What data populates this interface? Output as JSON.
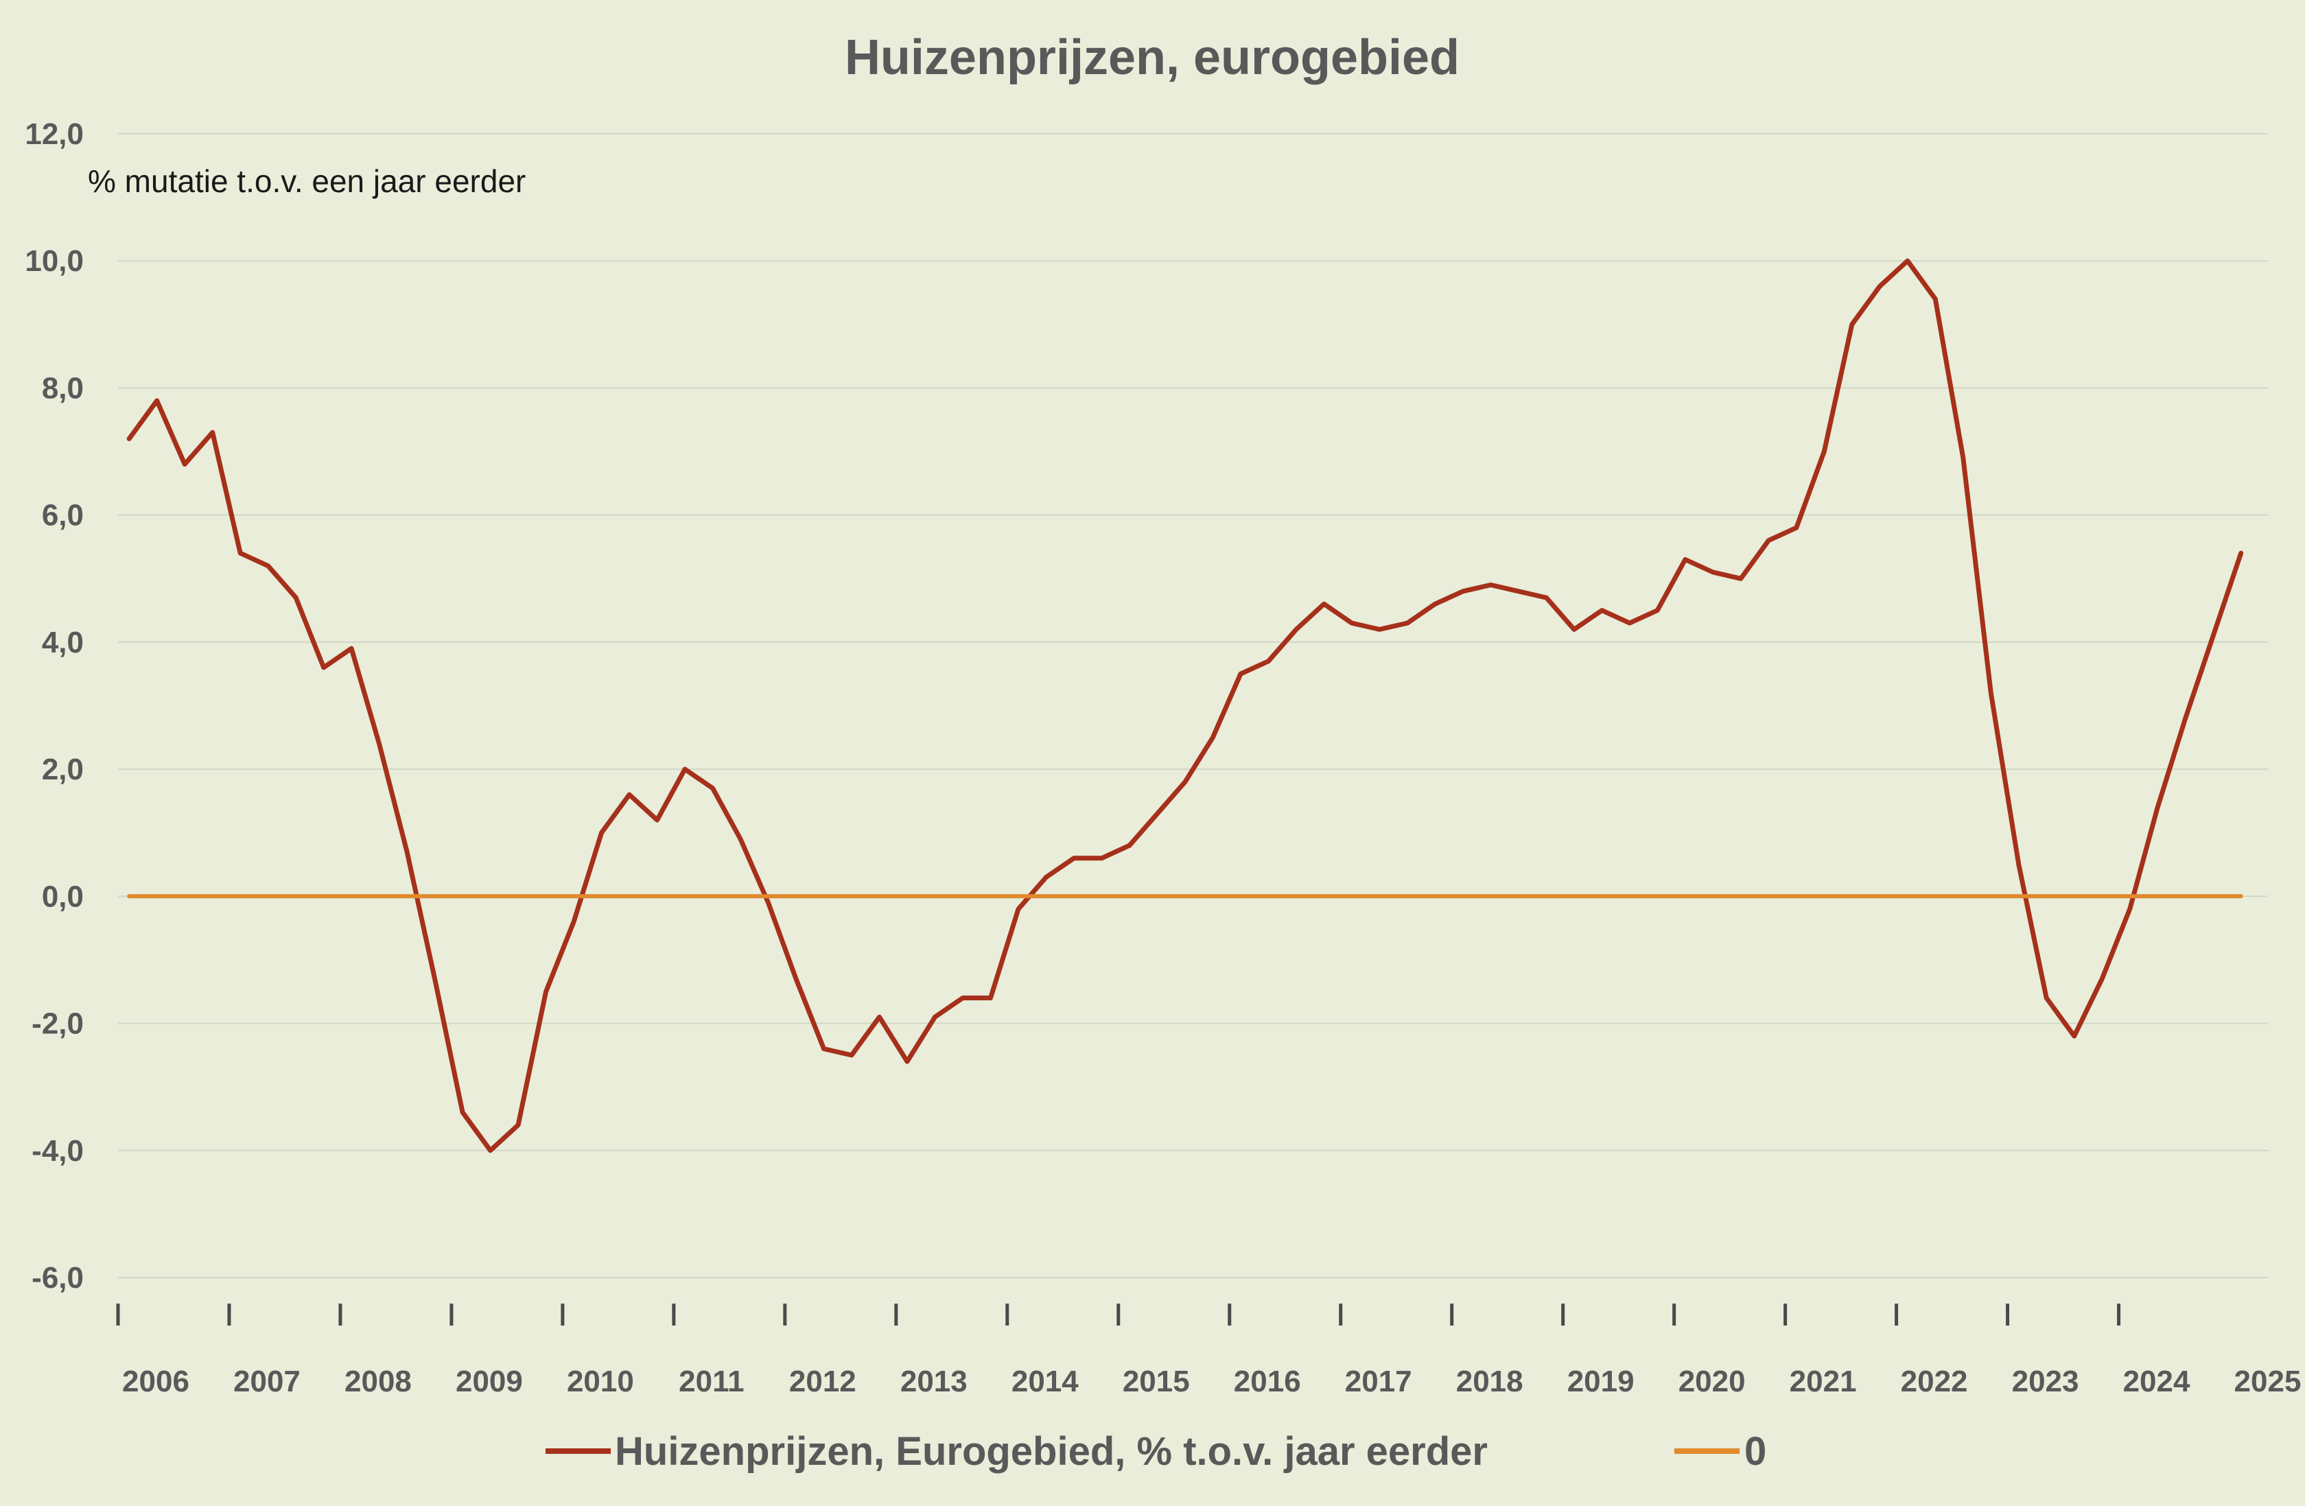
{
  "chart_data": {
    "type": "line",
    "title": "Huizenprijzen, eurogebied",
    "ylabel": "% mutatie t.o.v. een jaar eerder",
    "xlabel": "",
    "ylim": [
      -6,
      12
    ],
    "y_ticks": [
      "12,0",
      "10,0",
      "8,0",
      "6,0",
      "4,0",
      "2,0",
      "0,0",
      "-2,0",
      "-4,0",
      "-6,0"
    ],
    "x_ticks": [
      "2006",
      "2007",
      "2008",
      "2009",
      "2010",
      "2011",
      "2012",
      "2013",
      "2014",
      "2015",
      "2016",
      "2017",
      "2018",
      "2019",
      "2020",
      "2021",
      "2022",
      "2023",
      "2024",
      "2025"
    ],
    "x_range": [
      2006,
      2025.25
    ],
    "grid": true,
    "legend_position": "bottom",
    "series": [
      {
        "name": "Huizenprijzen, Eurogebied, % t.o.v. jaar eerder",
        "color": "#a6301a",
        "x": [
          2006.1,
          2006.35,
          2006.6,
          2006.85,
          2007.1,
          2007.35,
          2007.6,
          2007.85,
          2008.1,
          2008.35,
          2008.6,
          2008.85,
          2009.1,
          2009.35,
          2009.6,
          2009.85,
          2010.1,
          2010.35,
          2010.6,
          2010.85,
          2011.1,
          2011.35,
          2011.6,
          2011.85,
          2012.1,
          2012.35,
          2012.6,
          2012.85,
          2013.1,
          2013.35,
          2013.6,
          2013.85,
          2014.1,
          2014.35,
          2014.6,
          2014.85,
          2015.1,
          2015.35,
          2015.6,
          2015.85,
          2016.1,
          2016.35,
          2016.6,
          2016.85,
          2017.1,
          2017.35,
          2017.6,
          2017.85,
          2018.1,
          2018.35,
          2018.6,
          2018.85,
          2019.1,
          2019.35,
          2019.6,
          2019.85,
          2020.1,
          2020.35,
          2020.6,
          2020.85,
          2021.1,
          2021.35,
          2021.6,
          2021.85,
          2022.1,
          2022.35,
          2022.6,
          2022.85,
          2023.1,
          2023.35,
          2023.6,
          2023.85,
          2024.1,
          2024.35,
          2024.6,
          2024.85,
          2025.1
        ],
        "values": [
          7.2,
          7.8,
          6.8,
          7.3,
          5.4,
          5.2,
          4.7,
          3.6,
          3.9,
          2.4,
          0.7,
          -1.3,
          -3.4,
          -4.0,
          -3.6,
          -1.5,
          -0.4,
          1.0,
          1.6,
          1.2,
          2.0,
          1.7,
          0.9,
          -0.1,
          -1.3,
          -2.4,
          -2.5,
          -1.9,
          -2.6,
          -1.9,
          -1.6,
          -1.6,
          -0.2,
          0.3,
          0.6,
          0.6,
          0.8,
          1.3,
          1.8,
          2.5,
          3.5,
          3.7,
          4.2,
          4.6,
          4.3,
          4.2,
          4.3,
          4.6,
          4.8,
          4.9,
          4.8,
          4.7,
          4.2,
          4.5,
          4.3,
          4.5,
          5.3,
          5.1,
          5.0,
          5.6,
          5.8,
          7.0,
          9.0,
          9.6,
          10.0,
          9.4,
          6.9,
          3.2,
          0.5,
          -1.6,
          -2.2,
          -1.3,
          -0.2,
          1.4,
          2.8,
          4.1,
          5.4
        ]
      },
      {
        "name": "0",
        "color": "#e08a2c",
        "x": [
          2006.1,
          2025.1
        ],
        "values": [
          0,
          0
        ]
      }
    ]
  }
}
